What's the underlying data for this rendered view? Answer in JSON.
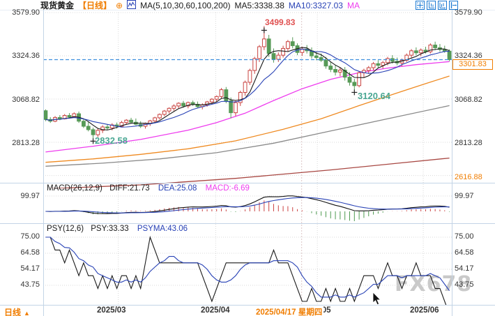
{
  "header": {
    "symbol": "现货黄金",
    "period_tag": "【日线】",
    "plus_icon": "⊕",
    "ma_params": "MA(5,10,30,60,100,200)",
    "ma5": "MA5:3338.38",
    "ma10": "MA10:3327.03",
    "ma_more": "MA"
  },
  "axis": {
    "main_ticks": [
      "3579.90",
      "3324.36",
      "3068.82",
      "2813.28"
    ],
    "range_low": "2616.88",
    "current_price": "3301.83",
    "macd_tick": "99.97",
    "psy_ticks": [
      "75.00",
      "64.58",
      "54.17",
      "43.75"
    ]
  },
  "macd_header": {
    "name": "MACD(26,12,9)",
    "diff": "DIFF:21.73",
    "dea": "DEA:25.08",
    "macd": "MACD:-6.69"
  },
  "psy_header": {
    "name": "PSY(12,6)",
    "psy": "PSY:33.33",
    "psyma": "PSYMA:43.06"
  },
  "footer": {
    "period": "日线",
    "arrow": "▲",
    "dates": [
      "2025/03",
      "2025/04",
      "2025/05",
      "2025/06"
    ],
    "selected_date": "2025/04/17 星期四"
  },
  "watermark": "FX678",
  "annotations": [
    {
      "index": 46,
      "price": 3499.83,
      "label": "3499.83",
      "kind": "high"
    },
    {
      "index": 10,
      "price": 2832.58,
      "label": "2832.58",
      "kind": "low"
    },
    {
      "index": 65,
      "price": 3120.64,
      "label": "3120.64",
      "kind": "low"
    }
  ],
  "colors": {
    "accent_orange": "#f07d00",
    "candle_up": "#c94340",
    "candle_down": "#579a57",
    "ma5": "#1a1a1a",
    "ma10": "#2741b5",
    "ma30": "#ee3cee",
    "ma60": "#ef8a21",
    "ma100": "#8a8a8a",
    "ma200": "#a84742",
    "dashed_price": "#3f8fde",
    "hist_up": "#cc4444",
    "hist_down": "#4d9a50",
    "grid": "#d9d9d9",
    "crosshair": "#dcc6c6",
    "divider": "#c3d4e6",
    "psy_line": "#1a1a1a",
    "psy_ma": "#2741b5",
    "icon_blue": "#1b79d2"
  },
  "chart_data": {
    "type": "candlestick",
    "title": "现货黄金 日线",
    "price_axis": {
      "ticks": [
        3579.9,
        3324.36,
        3068.82,
        2813.28,
        2616.88
      ],
      "current": 3301.83
    },
    "macd_axis_max": 99.97,
    "psy_axis": [
      75.0,
      64.58,
      54.17,
      43.75
    ],
    "month_index": [
      15.8,
      36.3,
      57.7,
      80.0
    ],
    "crosshair_index": 54.4,
    "candles": [
      [
        3000,
        3008,
        2938,
        2948
      ],
      [
        2948,
        2962,
        2928,
        2938
      ],
      [
        2938,
        2968,
        2932,
        2960
      ],
      [
        2960,
        2974,
        2944,
        2952
      ],
      [
        2952,
        2980,
        2948,
        2972
      ],
      [
        2972,
        2986,
        2954,
        2962
      ],
      [
        2962,
        2990,
        2958,
        2982
      ],
      [
        2982,
        2995,
        2928,
        2938
      ],
      [
        2938,
        2955,
        2898,
        2908
      ],
      [
        2908,
        2934,
        2878,
        2888
      ],
      [
        2888,
        2900,
        2832.58,
        2858
      ],
      [
        2858,
        2894,
        2844,
        2884
      ],
      [
        2884,
        2914,
        2868,
        2904
      ],
      [
        2904,
        2920,
        2888,
        2898
      ],
      [
        2898,
        2926,
        2884,
        2916
      ],
      [
        2916,
        2930,
        2894,
        2908
      ],
      [
        2908,
        2940,
        2902,
        2930
      ],
      [
        2930,
        2950,
        2918,
        2944
      ],
      [
        2944,
        2958,
        2924,
        2932
      ],
      [
        2932,
        2954,
        2914,
        2920
      ],
      [
        2920,
        2938,
        2898,
        2908
      ],
      [
        2908,
        2930,
        2894,
        2924
      ],
      [
        2924,
        2946,
        2910,
        2940
      ],
      [
        2940,
        2964,
        2930,
        2958
      ],
      [
        2958,
        2984,
        2948,
        2978
      ],
      [
        2978,
        3004,
        2968,
        2998
      ],
      [
        2998,
        3020,
        2984,
        3014
      ],
      [
        3014,
        3038,
        3000,
        3028
      ],
      [
        3028,
        3050,
        3014,
        3044
      ],
      [
        3044,
        3058,
        3018,
        3028
      ],
      [
        3028,
        3054,
        3014,
        3048
      ],
      [
        3048,
        3060,
        3028,
        3038
      ],
      [
        3038,
        3054,
        3018,
        3024
      ],
      [
        3024,
        3044,
        3008,
        3034
      ],
      [
        3034,
        3058,
        3024,
        3052
      ],
      [
        3052,
        3074,
        3038,
        3068
      ],
      [
        3068,
        3090,
        3050,
        3084
      ],
      [
        3084,
        3134,
        3074,
        3124
      ],
      [
        3124,
        3140,
        3044,
        3058
      ],
      [
        3058,
        3078,
        2956,
        2988
      ],
      [
        2988,
        3058,
        2968,
        3048
      ],
      [
        3048,
        3118,
        3028,
        3108
      ],
      [
        3108,
        3178,
        3088,
        3168
      ],
      [
        3168,
        3248,
        3152,
        3238
      ],
      [
        3238,
        3318,
        3218,
        3308
      ],
      [
        3308,
        3388,
        3288,
        3378
      ],
      [
        3378,
        3499.83,
        3358,
        3424
      ],
      [
        3424,
        3448,
        3318,
        3338
      ],
      [
        3338,
        3368,
        3284,
        3304
      ],
      [
        3304,
        3344,
        3288,
        3328
      ],
      [
        3328,
        3384,
        3314,
        3368
      ],
      [
        3368,
        3418,
        3348,
        3408
      ],
      [
        3408,
        3434,
        3368,
        3384
      ],
      [
        3384,
        3398,
        3328,
        3344
      ],
      [
        3344,
        3378,
        3324,
        3364
      ],
      [
        3364,
        3388,
        3338,
        3354
      ],
      [
        3354,
        3374,
        3308,
        3324
      ],
      [
        3324,
        3348,
        3298,
        3314
      ],
      [
        3314,
        3338,
        3288,
        3298
      ],
      [
        3298,
        3318,
        3248,
        3264
      ],
      [
        3264,
        3288,
        3228,
        3244
      ],
      [
        3244,
        3268,
        3208,
        3228
      ],
      [
        3228,
        3254,
        3204,
        3240
      ],
      [
        3240,
        3258,
        3178,
        3198
      ],
      [
        3198,
        3228,
        3148,
        3168
      ],
      [
        3168,
        3188,
        3120.64,
        3148
      ],
      [
        3148,
        3234,
        3138,
        3224
      ],
      [
        3224,
        3248,
        3198,
        3238
      ],
      [
        3238,
        3264,
        3218,
        3254
      ],
      [
        3254,
        3288,
        3238,
        3278
      ],
      [
        3278,
        3298,
        3254,
        3268
      ],
      [
        3268,
        3294,
        3248,
        3284
      ],
      [
        3284,
        3318,
        3268,
        3308
      ],
      [
        3308,
        3328,
        3278,
        3292
      ],
      [
        3292,
        3314,
        3268,
        3282
      ],
      [
        3282,
        3308,
        3262,
        3298
      ],
      [
        3298,
        3338,
        3288,
        3328
      ],
      [
        3328,
        3364,
        3314,
        3354
      ],
      [
        3354,
        3374,
        3328,
        3342
      ],
      [
        3342,
        3368,
        3322,
        3358
      ],
      [
        3358,
        3378,
        3338,
        3348
      ],
      [
        3348,
        3398,
        3338,
        3388
      ],
      [
        3388,
        3408,
        3358,
        3372
      ],
      [
        3372,
        3394,
        3348,
        3362
      ],
      [
        3362,
        3384,
        3342,
        3352
      ],
      [
        3352,
        3362,
        3292,
        3301.83
      ]
    ],
    "ma_keypoints": {
      "ma30": [
        [
          0,
          2756
        ],
        [
          10,
          2790
        ],
        [
          20,
          2830
        ],
        [
          30,
          2885
        ],
        [
          36,
          2930
        ],
        [
          42,
          2985
        ],
        [
          48,
          3060
        ],
        [
          54,
          3130
        ],
        [
          60,
          3185
        ],
        [
          66,
          3225
        ],
        [
          72,
          3252
        ],
        [
          78,
          3272
        ],
        [
          85,
          3290
        ]
      ],
      "ma60": [
        [
          0,
          2695
        ],
        [
          10,
          2715
        ],
        [
          20,
          2742
        ],
        [
          30,
          2775
        ],
        [
          40,
          2822
        ],
        [
          50,
          2890
        ],
        [
          58,
          2952
        ],
        [
          66,
          3030
        ],
        [
          74,
          3105
        ],
        [
          80,
          3160
        ],
        [
          85,
          3205
        ]
      ],
      "ma100": [
        [
          0,
          2672
        ],
        [
          12,
          2690
        ],
        [
          24,
          2715
        ],
        [
          36,
          2752
        ],
        [
          48,
          2808
        ],
        [
          60,
          2880
        ],
        [
          72,
          2952
        ],
        [
          85,
          3030
        ]
      ],
      "ma200": [
        [
          0,
          2538
        ],
        [
          20,
          2562
        ],
        [
          40,
          2600
        ],
        [
          60,
          2650
        ],
        [
          75,
          2692
        ],
        [
          85,
          2720
        ]
      ]
    },
    "psy": [
      75,
      75,
      66.67,
      66.67,
      58.33,
      66.67,
      58.33,
      50,
      58.33,
      50,
      50,
      41.67,
      50,
      41.67,
      50,
      41.67,
      50,
      50,
      41.67,
      50,
      41.67,
      58.33,
      75,
      66.67,
      58.33,
      58.33,
      58.33,
      58.33,
      58.33,
      58.33,
      58.33,
      58.33,
      58.33,
      50,
      41.67,
      33.33,
      41.67,
      50,
      58.33,
      58.33,
      58.33,
      58.33,
      58.33,
      58.33,
      58.33,
      58.33,
      58.33,
      58.33,
      66.67,
      58.33,
      58.33,
      58.33,
      50,
      41.67,
      33.33,
      33.33,
      41.67,
      33.33,
      33.33,
      41.67,
      33.33,
      41.67,
      33.33,
      33.33,
      41.67,
      33.33,
      41.67,
      50,
      50,
      50,
      41.67,
      50,
      58.33,
      50,
      50,
      41.67,
      50,
      50,
      58.33,
      50,
      50,
      50,
      41.67,
      41.67,
      33.33,
      25
    ]
  }
}
